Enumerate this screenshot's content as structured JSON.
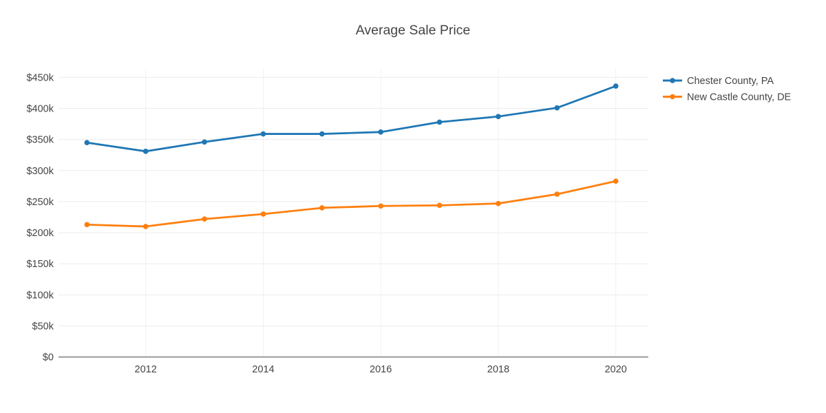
{
  "title": "Average Sale Price",
  "chart_data": {
    "type": "line",
    "title": "Average Sale Price",
    "x": [
      2011,
      2012,
      2013,
      2014,
      2015,
      2016,
      2017,
      2018,
      2019,
      2020
    ],
    "series": [
      {
        "name": "Chester County, PA",
        "color": "#1f77b4",
        "values": [
          345000,
          331000,
          346000,
          359000,
          359000,
          362000,
          378000,
          387000,
          401000,
          436000
        ]
      },
      {
        "name": "New Castle County, DE",
        "color": "#ff7f0e",
        "values": [
          213000,
          210000,
          222000,
          230000,
          240000,
          243000,
          244000,
          247000,
          262000,
          283000
        ]
      }
    ],
    "xlabel": "",
    "ylabel": "",
    "xlim": [
      2010.5,
      2020.55
    ],
    "ylim": [
      0,
      464000
    ],
    "xticks": [
      2012,
      2014,
      2016,
      2018,
      2020
    ],
    "yticks": [
      0,
      50000,
      100000,
      150000,
      200000,
      250000,
      300000,
      350000,
      400000,
      450000
    ],
    "ytick_labels": [
      "$0",
      "$50k",
      "$100k",
      "$150k",
      "$200k",
      "$250k",
      "$300k",
      "$350k",
      "$400k",
      "$450k"
    ],
    "grid": true,
    "legend_position": "right",
    "marker": "circle"
  },
  "colors": {
    "background": "#ffffff",
    "grid_horizontal": "#ebebeb",
    "grid_vertical": "#f0f0f0",
    "axis_line": "#999999",
    "text": "#444444"
  }
}
